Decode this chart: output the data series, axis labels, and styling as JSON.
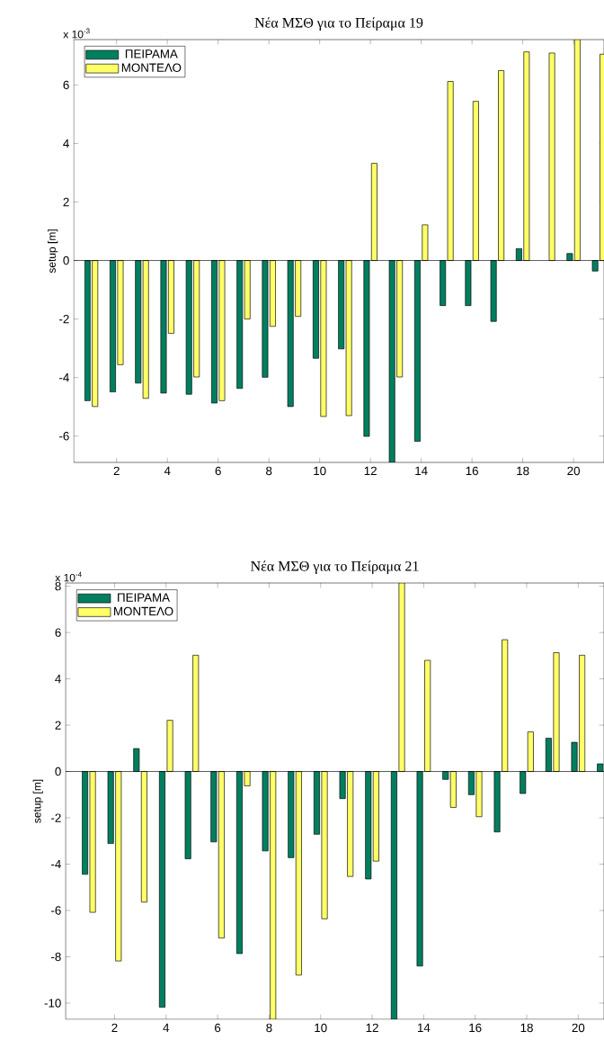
{
  "chart_data": [
    {
      "type": "bar",
      "title": "Νέα ΜΣΘ για το Πείραμα 19",
      "ylabel": "setup [m]",
      "annotations": [
        "x 10$^{-3}$"
      ],
      "x": [
        1,
        2,
        3,
        4,
        5,
        6,
        7,
        8,
        9,
        10,
        11,
        12,
        13,
        14,
        15,
        16,
        17,
        18,
        19,
        20,
        21
      ],
      "series": [
        {
          "name": "ΠΕΙΡΑΜΑ",
          "color": "#007f5f",
          "values": [
            -4.79,
            -4.49,
            -4.19,
            -4.53,
            -4.57,
            -4.87,
            -4.37,
            -3.99,
            -4.99,
            -3.34,
            -3.02,
            -6.01,
            -6.9,
            -6.18,
            -1.54,
            -1.54,
            -2.08,
            0.41,
            null,
            0.24,
            -0.36
          ]
        },
        {
          "name": "ΜΟΝΤΕΛΟ",
          "color": "#ffff66",
          "values": [
            -4.99,
            -3.56,
            -4.71,
            -2.49,
            -3.98,
            -4.79,
            -2.0,
            -2.25,
            -1.91,
            -5.33,
            -5.3,
            3.32,
            -3.98,
            1.22,
            6.12,
            5.44,
            6.49,
            7.13,
            7.09,
            7.55,
            7.05
          ]
        }
      ],
      "xlim": [
        0.31,
        21.2
      ],
      "ylim": [
        -6.9,
        7.55
      ],
      "xticks": [
        2,
        4,
        6,
        8,
        10,
        12,
        14,
        16,
        18,
        20
      ],
      "yticks": [
        -6,
        -4,
        -2,
        0,
        2,
        4,
        6
      ],
      "legend": "top left"
    },
    {
      "type": "bar",
      "title": "Νέα ΜΣΘ για το Πείραμα 21",
      "ylabel": "setup [m]",
      "annotations": [
        "x 10$^{-4}$"
      ],
      "x": [
        1,
        2,
        3,
        4,
        5,
        6,
        7,
        8,
        9,
        10,
        11,
        12,
        13,
        14,
        15,
        16,
        17,
        18,
        19,
        20,
        21
      ],
      "series": [
        {
          "name": "ΠΕΙΡΑΜΑ",
          "color": "#007f5f",
          "values": [
            -4.44,
            -3.11,
            0.99,
            -10.18,
            -3.77,
            -3.04,
            -7.86,
            -3.43,
            -3.72,
            -2.71,
            -1.17,
            -4.64,
            -10.7,
            -8.4,
            -0.34,
            -1.0,
            -2.61,
            -0.95,
            1.44,
            1.26,
            0.33
          ]
        },
        {
          "name": "ΜΟΝΤΕΛΟ",
          "color": "#ffff66",
          "values": [
            -6.08,
            -8.18,
            -5.64,
            2.21,
            5.02,
            -7.19,
            -0.62,
            -10.7,
            -8.79,
            -6.36,
            -4.53,
            -3.87,
            8.14,
            4.8,
            -1.55,
            -1.95,
            5.69,
            1.71,
            5.13,
            5.02,
            null
          ]
        }
      ],
      "xlim": [
        0.1,
        21.0
      ],
      "ylim": [
        -10.7,
        8.14
      ],
      "xticks": [
        2,
        4,
        6,
        8,
        10,
        12,
        14,
        16,
        18,
        20
      ],
      "yticks": [
        -10,
        -8,
        -6,
        -4,
        -2,
        0,
        2,
        4,
        6,
        8
      ],
      "legend": "top left"
    }
  ]
}
